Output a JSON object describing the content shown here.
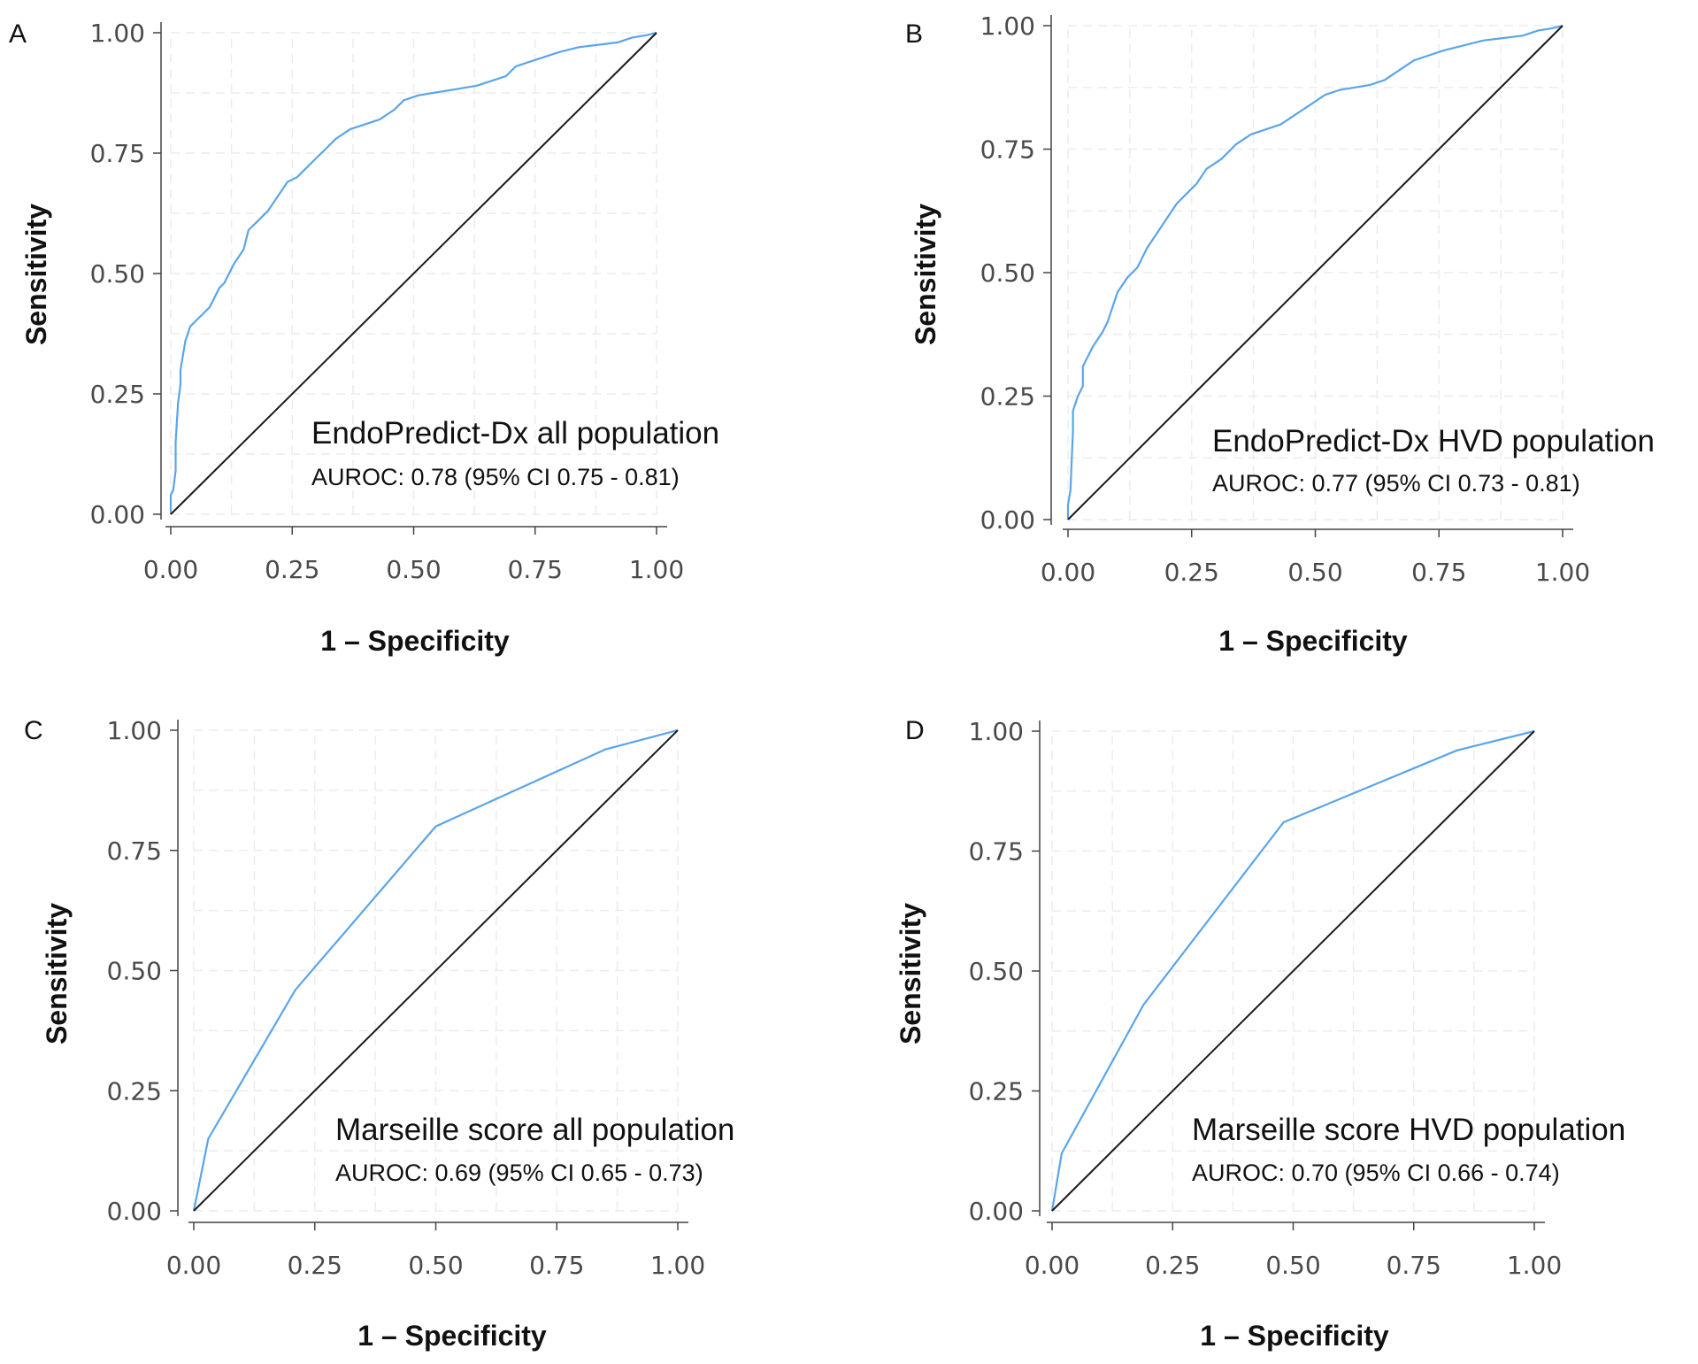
{
  "colors": {
    "roc": "#5aa5ea",
    "diagonal": "#1a1a1a"
  },
  "chart_data": [
    {
      "panel": "A",
      "type": "line",
      "title": "EndoPredict-Dx all population",
      "subtitle": "AUROC: 0.78 (95% CI 0.75 - 0.81)",
      "xlabel": "1 – Specificity",
      "ylabel": "Sensitivity",
      "xlim": [
        0,
        1
      ],
      "ylim": [
        0,
        1
      ],
      "xticks": [
        "0.00",
        "0.25",
        "0.50",
        "0.75",
        "1.00"
      ],
      "yticks": [
        "0.00",
        "0.25",
        "0.50",
        "0.75",
        "1.00"
      ],
      "grid": true,
      "series": [
        {
          "name": "ROC",
          "x": [
            0,
            0,
            0.005,
            0.01,
            0.01,
            0.015,
            0.02,
            0.02,
            0.03,
            0.04,
            0.05,
            0.06,
            0.08,
            0.09,
            0.1,
            0.11,
            0.13,
            0.15,
            0.16,
            0.18,
            0.19,
            0.2,
            0.22,
            0.24,
            0.26,
            0.28,
            0.3,
            0.32,
            0.34,
            0.37,
            0.4,
            0.43,
            0.46,
            0.48,
            0.51,
            0.54,
            0.57,
            0.6,
            0.63,
            0.66,
            0.69,
            0.71,
            0.74,
            0.77,
            0.8,
            0.84,
            0.88,
            0.92,
            0.95,
            0.98,
            1.0
          ],
          "y": [
            0,
            0.04,
            0.05,
            0.09,
            0.15,
            0.23,
            0.27,
            0.3,
            0.36,
            0.39,
            0.4,
            0.41,
            0.43,
            0.45,
            0.47,
            0.48,
            0.52,
            0.55,
            0.59,
            0.61,
            0.62,
            0.63,
            0.66,
            0.69,
            0.7,
            0.72,
            0.74,
            0.76,
            0.78,
            0.8,
            0.81,
            0.82,
            0.84,
            0.86,
            0.87,
            0.875,
            0.88,
            0.885,
            0.89,
            0.9,
            0.91,
            0.93,
            0.94,
            0.95,
            0.96,
            0.97,
            0.975,
            0.98,
            0.99,
            0.995,
            1.0
          ]
        },
        {
          "name": "Reference",
          "x": [
            0,
            1
          ],
          "y": [
            0,
            1
          ]
        }
      ]
    },
    {
      "panel": "B",
      "type": "line",
      "title": "EndoPredict-Dx HVD population",
      "subtitle": "AUROC: 0.77 (95% CI 0.73 - 0.81)",
      "xlabel": "1 – Specificity",
      "ylabel": "Sensitivity",
      "xlim": [
        0,
        1
      ],
      "ylim": [
        0,
        1
      ],
      "xticks": [
        "0.00",
        "0.25",
        "0.50",
        "0.75",
        "1.00"
      ],
      "yticks": [
        "0.00",
        "0.25",
        "0.50",
        "0.75",
        "1.00"
      ],
      "grid": true,
      "series": [
        {
          "name": "ROC",
          "x": [
            0,
            0,
            0.005,
            0.01,
            0.01,
            0.02,
            0.03,
            0.03,
            0.04,
            0.05,
            0.07,
            0.08,
            0.09,
            0.1,
            0.12,
            0.14,
            0.16,
            0.18,
            0.2,
            0.22,
            0.24,
            0.26,
            0.28,
            0.31,
            0.34,
            0.37,
            0.4,
            0.43,
            0.46,
            0.49,
            0.52,
            0.55,
            0.58,
            0.61,
            0.64,
            0.67,
            0.7,
            0.73,
            0.76,
            0.8,
            0.84,
            0.88,
            0.92,
            0.95,
            0.98,
            1.0
          ],
          "y": [
            0,
            0.03,
            0.06,
            0.18,
            0.22,
            0.25,
            0.27,
            0.31,
            0.33,
            0.35,
            0.38,
            0.4,
            0.43,
            0.46,
            0.49,
            0.51,
            0.55,
            0.58,
            0.61,
            0.64,
            0.66,
            0.68,
            0.71,
            0.73,
            0.76,
            0.78,
            0.79,
            0.8,
            0.82,
            0.84,
            0.86,
            0.87,
            0.875,
            0.88,
            0.89,
            0.91,
            0.93,
            0.94,
            0.95,
            0.96,
            0.97,
            0.975,
            0.98,
            0.99,
            0.995,
            1.0
          ]
        },
        {
          "name": "Reference",
          "x": [
            0,
            1
          ],
          "y": [
            0,
            1
          ]
        }
      ]
    },
    {
      "panel": "C",
      "type": "line",
      "title": "Marseille score all population",
      "subtitle": "AUROC: 0.69 (95% CI 0.65 - 0.73)",
      "xlabel": "1 – Specificity",
      "ylabel": "Sensitivity",
      "xlim": [
        0,
        1
      ],
      "ylim": [
        0,
        1
      ],
      "xticks": [
        "0.00",
        "0.25",
        "0.50",
        "0.75",
        "1.00"
      ],
      "yticks": [
        "0.00",
        "0.25",
        "0.50",
        "0.75",
        "1.00"
      ],
      "grid": true,
      "series": [
        {
          "name": "ROC",
          "x": [
            0,
            0.03,
            0.21,
            0.5,
            0.85,
            1.0
          ],
          "y": [
            0,
            0.15,
            0.46,
            0.8,
            0.96,
            1.0
          ]
        },
        {
          "name": "Reference",
          "x": [
            0,
            1
          ],
          "y": [
            0,
            1
          ]
        }
      ]
    },
    {
      "panel": "D",
      "type": "line",
      "title": "Marseille score HVD population",
      "subtitle": "AUROC: 0.70 (95% CI 0.66 - 0.74)",
      "xlabel": "1 – Specificity",
      "ylabel": "Sensitivity",
      "xlim": [
        0,
        1
      ],
      "ylim": [
        0,
        1
      ],
      "xticks": [
        "0.00",
        "0.25",
        "0.50",
        "0.75",
        "1.00"
      ],
      "yticks": [
        "0.00",
        "0.25",
        "0.50",
        "0.75",
        "1.00"
      ],
      "grid": true,
      "series": [
        {
          "name": "ROC",
          "x": [
            0,
            0.02,
            0.19,
            0.48,
            0.84,
            1.0
          ],
          "y": [
            0,
            0.12,
            0.43,
            0.81,
            0.96,
            1.0
          ]
        },
        {
          "name": "Reference",
          "x": [
            0,
            1
          ],
          "y": [
            0,
            1
          ]
        }
      ]
    }
  ]
}
